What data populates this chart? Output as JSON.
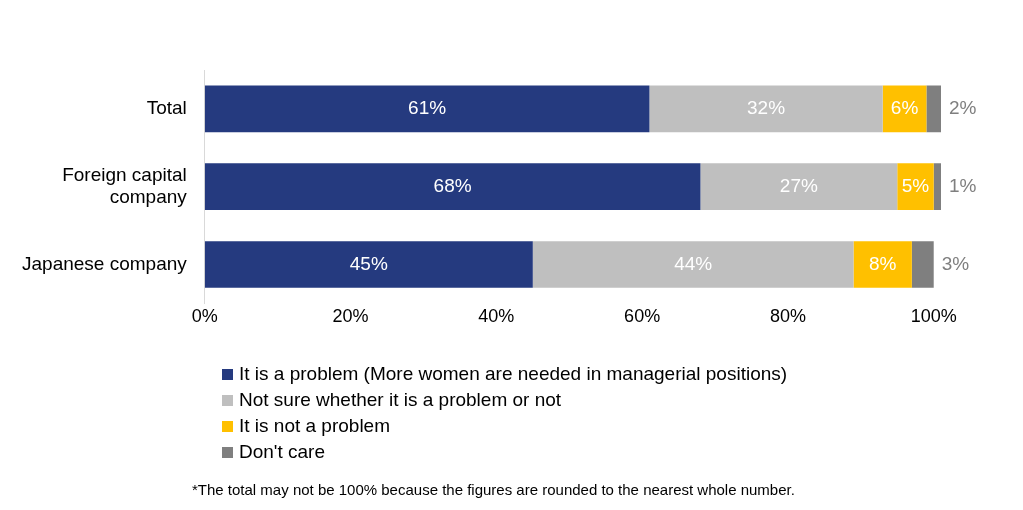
{
  "chart_data": {
    "type": "bar",
    "orientation": "horizontal",
    "stacked": true,
    "categories": [
      "Total",
      "Foreign capital company",
      "Japanese company"
    ],
    "series": [
      {
        "name": "It is a problem (More women are needed in managerial positions)",
        "color": "#253a7f",
        "values": [
          61,
          68,
          45
        ],
        "value_labels": [
          "61%",
          "68%",
          "45%"
        ]
      },
      {
        "name": "Not sure whether it is a problem or not",
        "color": "#bfbfbf",
        "values": [
          32,
          27,
          44
        ],
        "value_labels": [
          "32%",
          "27%",
          "44%"
        ]
      },
      {
        "name": "It is not a problem",
        "color": "#ffc000",
        "values": [
          6,
          5,
          8
        ],
        "value_labels": [
          "6%",
          "5%",
          "8%"
        ]
      },
      {
        "name": "Don't care",
        "color": "#7f7f7f",
        "values": [
          2,
          1,
          3
        ],
        "value_labels": [
          "2%",
          "1%",
          "3%"
        ]
      }
    ],
    "xlim": [
      0,
      101
    ],
    "xticks": [
      {
        "value": 0,
        "label": "0%"
      },
      {
        "value": 20,
        "label": "20%"
      },
      {
        "value": 40,
        "label": "40%"
      },
      {
        "value": 60,
        "label": "60%"
      },
      {
        "value": 80,
        "label": "80%"
      },
      {
        "value": 100,
        "label": "100%"
      }
    ],
    "grid": false,
    "legend": "bottom",
    "annotations": [
      "*The total may not be 100% because the figures are rounded to the nearest whole number."
    ]
  }
}
